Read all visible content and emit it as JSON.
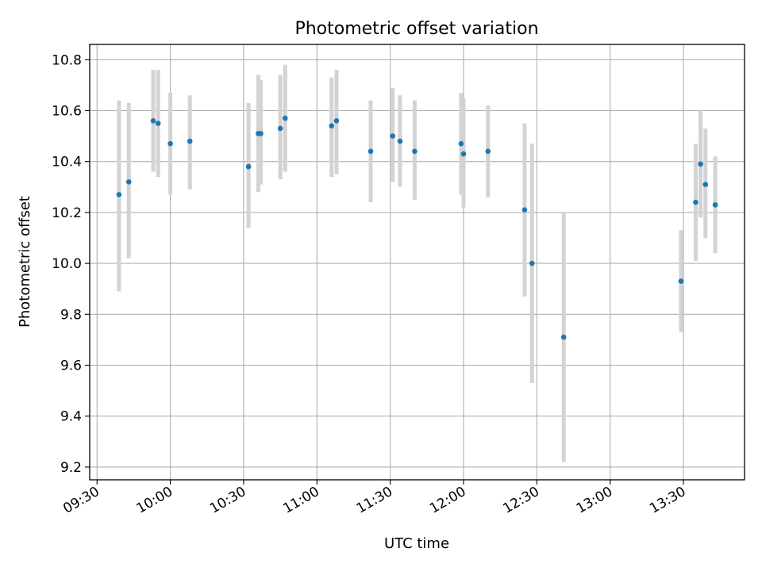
{
  "chart_data": {
    "type": "scatter",
    "title": "Photometric offset variation",
    "xlabel": "UTC time",
    "ylabel": "Photometric offset",
    "xlim": [
      "09:27",
      "13:55"
    ],
    "ylim": [
      9.15,
      10.86
    ],
    "grid": true,
    "colors": {
      "point": "#1f77b4",
      "errorbar": "#d3d3d3",
      "grid": "#b0b0b0",
      "axis": "#000000"
    },
    "x_ticks": [
      "09:30",
      "10:00",
      "10:30",
      "11:00",
      "11:30",
      "12:00",
      "12:30",
      "13:00",
      "13:30"
    ],
    "y_ticks": [
      "9.2",
      "9.4",
      "9.6",
      "9.8",
      "10.0",
      "10.2",
      "10.4",
      "10.6",
      "10.8"
    ],
    "points": [
      {
        "x": "09:39",
        "y": 10.27,
        "ylow": 9.89,
        "yhigh": 10.64
      },
      {
        "x": "09:43",
        "y": 10.32,
        "ylow": 10.02,
        "yhigh": 10.63
      },
      {
        "x": "09:53",
        "y": 10.56,
        "ylow": 10.36,
        "yhigh": 10.76
      },
      {
        "x": "09:55",
        "y": 10.55,
        "ylow": 10.34,
        "yhigh": 10.76
      },
      {
        "x": "10:00",
        "y": 10.47,
        "ylow": 10.27,
        "yhigh": 10.67
      },
      {
        "x": "10:08",
        "y": 10.48,
        "ylow": 10.29,
        "yhigh": 10.66
      },
      {
        "x": "10:32",
        "y": 10.38,
        "ylow": 10.14,
        "yhigh": 10.63
      },
      {
        "x": "10:36",
        "y": 10.51,
        "ylow": 10.28,
        "yhigh": 10.74
      },
      {
        "x": "10:37",
        "y": 10.51,
        "ylow": 10.31,
        "yhigh": 10.72
      },
      {
        "x": "10:45",
        "y": 10.53,
        "ylow": 10.33,
        "yhigh": 10.74
      },
      {
        "x": "10:47",
        "y": 10.57,
        "ylow": 10.36,
        "yhigh": 10.78
      },
      {
        "x": "11:06",
        "y": 10.54,
        "ylow": 10.34,
        "yhigh": 10.73
      },
      {
        "x": "11:08",
        "y": 10.56,
        "ylow": 10.35,
        "yhigh": 10.76
      },
      {
        "x": "11:22",
        "y": 10.44,
        "ylow": 10.24,
        "yhigh": 10.64
      },
      {
        "x": "11:31",
        "y": 10.5,
        "ylow": 10.32,
        "yhigh": 10.69
      },
      {
        "x": "11:34",
        "y": 10.48,
        "ylow": 10.3,
        "yhigh": 10.66
      },
      {
        "x": "11:40",
        "y": 10.44,
        "ylow": 10.25,
        "yhigh": 10.64
      },
      {
        "x": "11:59",
        "y": 10.47,
        "ylow": 10.27,
        "yhigh": 10.67
      },
      {
        "x": "12:00",
        "y": 10.43,
        "ylow": 10.22,
        "yhigh": 10.65
      },
      {
        "x": "12:10",
        "y": 10.44,
        "ylow": 10.26,
        "yhigh": 10.62
      },
      {
        "x": "12:25",
        "y": 10.21,
        "ylow": 9.87,
        "yhigh": 10.55
      },
      {
        "x": "12:28",
        "y": 10.0,
        "ylow": 9.53,
        "yhigh": 10.47
      },
      {
        "x": "12:41",
        "y": 9.71,
        "ylow": 9.22,
        "yhigh": 10.2
      },
      {
        "x": "13:29",
        "y": 9.93,
        "ylow": 9.73,
        "yhigh": 10.13
      },
      {
        "x": "13:35",
        "y": 10.24,
        "ylow": 10.01,
        "yhigh": 10.47
      },
      {
        "x": "13:37",
        "y": 10.39,
        "ylow": 10.18,
        "yhigh": 10.6
      },
      {
        "x": "13:39",
        "y": 10.31,
        "ylow": 10.1,
        "yhigh": 10.53
      },
      {
        "x": "13:43",
        "y": 10.23,
        "ylow": 10.04,
        "yhigh": 10.42
      }
    ]
  }
}
